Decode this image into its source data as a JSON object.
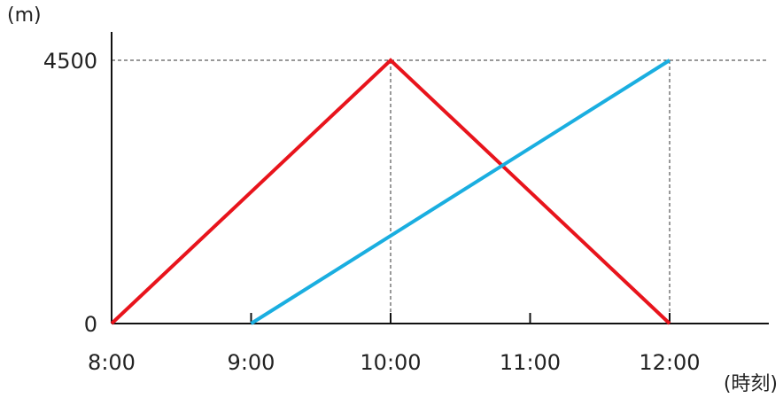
{
  "chart_data": {
    "type": "line",
    "xlabel": "(時刻)",
    "ylabel": "(m)",
    "x_unit": "hours",
    "xlim": [
      8,
      12.75
    ],
    "ylim": [
      0,
      4500
    ],
    "x_ticks": [
      {
        "value": 8,
        "label": "8:00"
      },
      {
        "value": 9,
        "label": "9:00"
      },
      {
        "value": 10,
        "label": "10:00"
      },
      {
        "value": 11,
        "label": "11:00"
      },
      {
        "value": 12,
        "label": "12:00"
      }
    ],
    "y_ticks": [
      {
        "value": 0,
        "label": "0"
      },
      {
        "value": 4500,
        "label": "4500"
      }
    ],
    "series": [
      {
        "color": "#e8141c",
        "points": [
          [
            8,
            0
          ],
          [
            10,
            4500
          ],
          [
            12,
            0
          ]
        ]
      },
      {
        "color": "#1aaee0",
        "points": [
          [
            9,
            0
          ],
          [
            12,
            4500
          ]
        ]
      }
    ],
    "guides": [
      {
        "x": 10,
        "y": 4500
      },
      {
        "x": 12,
        "y": 4500
      }
    ],
    "grid": false,
    "legend": "none"
  }
}
